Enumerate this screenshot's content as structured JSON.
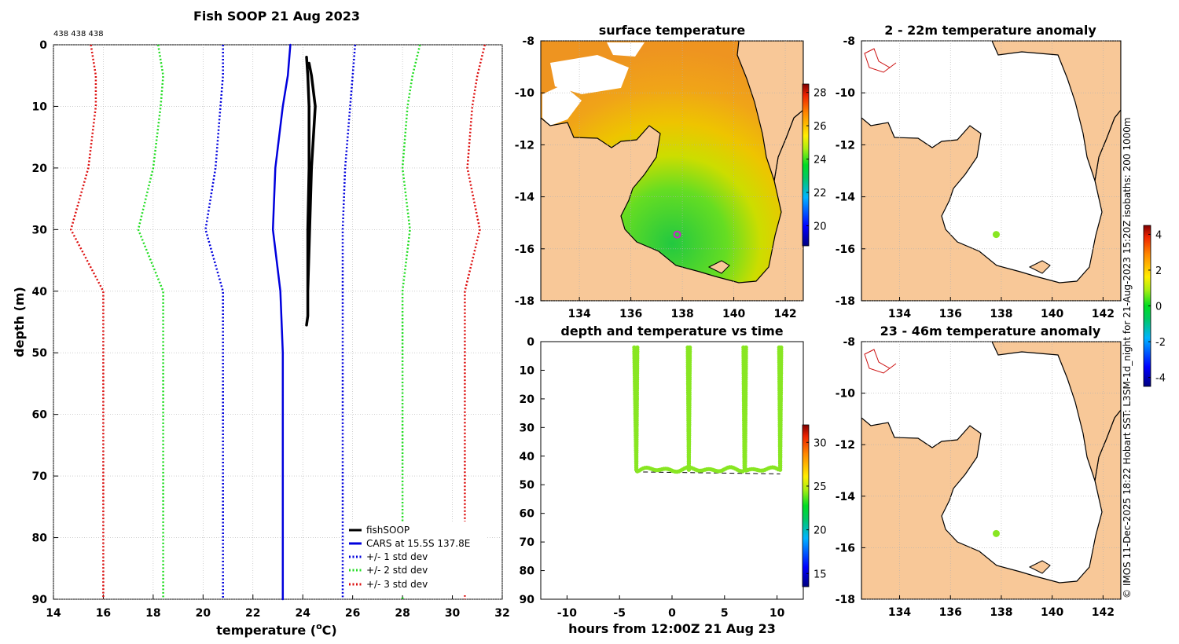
{
  "main_title": "Fish SOOP 21 Aug 2023",
  "counts_label": "438 438 438",
  "side_note": "© IMOS 11-Dec-2025 18:22 Hobart SST: L3SM-1d_night for 21-Aug-2023 15:20Z isobaths: 200  1000m",
  "colors": {
    "fish": "#000000",
    "cars": "#0000dd",
    "std1": "#0000dd",
    "std2": "#22dd22",
    "std3": "#dd1111",
    "scatter": "#88e622",
    "land": "#f8c898",
    "marker": "#cc22cc",
    "grid": "#b0b0b0"
  },
  "chart_data": [
    {
      "id": "profile",
      "type": "line",
      "xlabel_main": "temperature (",
      "xlabel_sup": "o",
      "xlabel_end": "C)",
      "ylabel": "depth (m)",
      "xlim": [
        14,
        32
      ],
      "ylim": [
        90,
        0
      ],
      "xticks": [
        14,
        16,
        18,
        20,
        22,
        24,
        26,
        28,
        30,
        32
      ],
      "yticks": [
        0,
        10,
        20,
        30,
        40,
        50,
        60,
        70,
        80,
        90
      ],
      "depths": [
        0,
        5,
        10,
        20,
        30,
        40,
        50,
        90
      ],
      "series": [
        {
          "name": "fishSOOP",
          "key": "fish",
          "style": "solid",
          "width": 3.5,
          "x": [
            24.15,
            24.2,
            24.25,
            24.25,
            24.2,
            24.2,
            24.2,
            24.15,
            24.2,
            24.2,
            24.35,
            24.5,
            24.35,
            24.25
          ],
          "y": [
            2,
            5,
            10,
            20,
            30,
            40,
            44,
            45.5,
            44,
            40,
            20,
            10,
            5,
            3
          ]
        },
        {
          "name": "CARS at 15.5S 137.8E",
          "key": "cars",
          "style": "solid",
          "width": 2.5,
          "x": [
            23.5,
            23.4,
            23.2,
            22.9,
            22.8,
            23.1,
            23.2,
            23.2
          ]
        },
        {
          "name": "+/- 1 std dev",
          "key": "std1",
          "style": "dot",
          "width": 2.5,
          "x": [
            20.8,
            20.8,
            20.7,
            20.5,
            20.1,
            20.8,
            20.8,
            20.8
          ]
        },
        {
          "name": "",
          "key": "std1",
          "style": "dot",
          "width": 2.5,
          "x": [
            26.1,
            26.0,
            25.9,
            25.7,
            25.6,
            25.6,
            25.6,
            25.6
          ]
        },
        {
          "name": "+/- 2 std dev",
          "key": "std2",
          "style": "dot",
          "width": 2.5,
          "x": [
            18.2,
            18.4,
            18.3,
            18.0,
            17.4,
            18.4,
            18.4,
            18.4
          ]
        },
        {
          "name": "",
          "key": "std2",
          "style": "dot",
          "width": 2.5,
          "x": [
            28.7,
            28.4,
            28.2,
            28.0,
            28.3,
            28.0,
            28.0,
            28.0
          ]
        },
        {
          "name": "+/- 3 std dev",
          "key": "std3",
          "style": "dot",
          "width": 2.5,
          "x": [
            15.5,
            15.7,
            15.7,
            15.4,
            14.7,
            16.0,
            16.0,
            16.0
          ]
        },
        {
          "name": "",
          "key": "std3",
          "style": "dot",
          "width": 2.5,
          "x": [
            31.3,
            31.0,
            30.8,
            30.6,
            31.1,
            30.5,
            30.5,
            30.5
          ]
        }
      ]
    },
    {
      "id": "surface_temperature",
      "type": "heatmap",
      "title": "surface temperature",
      "xlim": [
        132.5,
        142.7
      ],
      "ylim": [
        -18,
        -8
      ],
      "xticks": [
        134,
        136,
        138,
        140,
        142
      ],
      "yticks": [
        -8,
        -10,
        -12,
        -14,
        -16,
        -18
      ],
      "cbar_ticks": [
        20,
        22,
        24,
        26,
        28
      ],
      "cbar_range": [
        18.8,
        28.5
      ],
      "marker": {
        "lon": 137.8,
        "lat": -15.45
      }
    },
    {
      "id": "anomaly_shallow",
      "type": "heatmap",
      "title": "2 - 22m temperature anomaly",
      "xlim": [
        132.5,
        142.7
      ],
      "ylim": [
        -18,
        -8
      ],
      "xticks": [
        134,
        136,
        138,
        140,
        142
      ],
      "yticks": [
        -8,
        -10,
        -12,
        -14,
        -16,
        -18
      ],
      "point": {
        "lon": 137.8,
        "lat": -15.45,
        "value": 0.6
      }
    },
    {
      "id": "anomaly_deep",
      "type": "heatmap",
      "title": "23 - 46m temperature anomaly",
      "xlim": [
        132.5,
        142.7
      ],
      "ylim": [
        -18,
        -8
      ],
      "xticks": [
        134,
        136,
        138,
        140,
        142
      ],
      "yticks": [
        -8,
        -10,
        -12,
        -14,
        -16,
        -18
      ],
      "point": {
        "lon": 137.8,
        "lat": -15.45,
        "value": 0.6
      }
    },
    {
      "id": "anomaly_colorbar",
      "type": "heatmap",
      "cbar_ticks": [
        -4,
        -2,
        0,
        2,
        4
      ],
      "cbar_range": [
        -4.5,
        4.5
      ]
    },
    {
      "id": "depth_time",
      "type": "scatter",
      "title": "depth and temperature vs time",
      "xlabel": "hours from 12:00Z 21 Aug 23",
      "xlim": [
        -12.5,
        12.5
      ],
      "ylim": [
        90,
        0
      ],
      "xticks": [
        -10,
        -5,
        0,
        5,
        10
      ],
      "yticks": [
        0,
        10,
        20,
        30,
        40,
        50,
        60,
        70,
        80,
        90
      ],
      "cbar_ticks": [
        15,
        20,
        25,
        30
      ],
      "cbar_range": [
        13.5,
        32
      ],
      "bottom_line": {
        "x": [
          -3.5,
          10.3
        ],
        "y": [
          45.5,
          46.2
        ]
      },
      "casts": [
        {
          "down": [
            -3.6,
            -3.4
          ],
          "up": [
            -3.4,
            -3.3
          ]
        },
        {
          "down": [
            1.5,
            1.6
          ],
          "up": [
            1.6,
            1.7
          ]
        },
        {
          "down": [
            6.8,
            6.9
          ],
          "up": [
            6.95,
            7.05
          ]
        },
        {
          "down": [
            10.2,
            10.3
          ],
          "up": [
            10.3,
            10.4
          ]
        }
      ],
      "bottom_depth": 45
    }
  ]
}
